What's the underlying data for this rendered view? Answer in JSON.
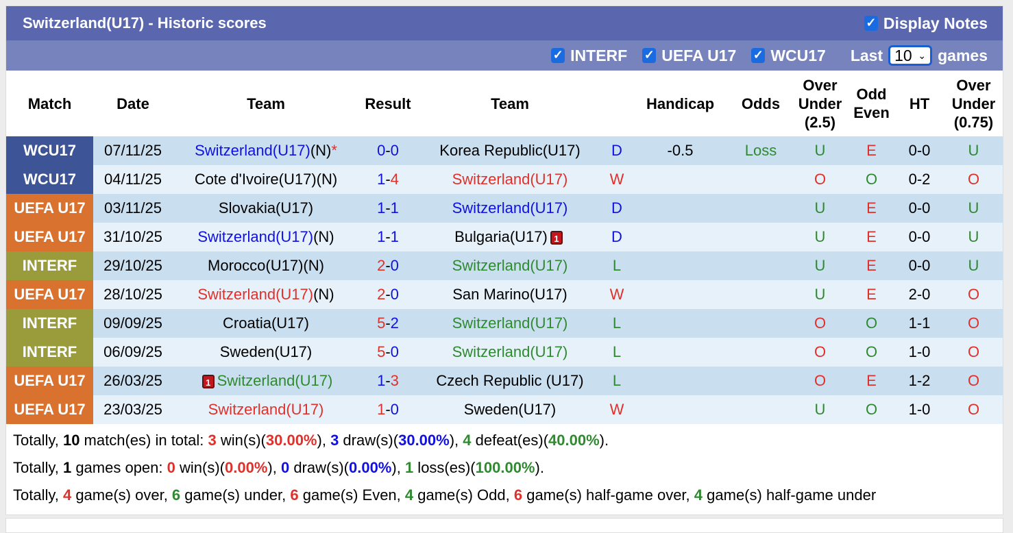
{
  "header": {
    "title": "Switzerland(U17) - Historic scores",
    "display_notes": "Display Notes",
    "display_notes_checked": true
  },
  "filters": {
    "items": [
      {
        "label": "INTERF",
        "checked": true
      },
      {
        "label": "UEFA U17",
        "checked": true
      },
      {
        "label": "WCU17",
        "checked": true
      }
    ],
    "last_label": "Last",
    "last_value": "10",
    "games_label": "games"
  },
  "columns": [
    "Match",
    "Date",
    "Team",
    "Result",
    "Team",
    "",
    "Handicap",
    "Odds",
    "Over Under (2.5)",
    "Odd Even",
    "HT",
    "Over Under (0.75)"
  ],
  "colors": {
    "WCU17": "#3d5597",
    "UEFA U17": "#d9722f",
    "INTERF": "#9a9c3c",
    "red": "#e0302a",
    "blue": "#1010e0",
    "green": "#2e8a2e",
    "black": "#000"
  },
  "rows": [
    {
      "match": "WCU17",
      "date": "07/11/25",
      "home": {
        "name": "Switzerland(U17)",
        "color": "blue",
        "suffix": "(N)",
        "star": "*"
      },
      "hs": "0",
      "hc": "blue",
      "as": "0",
      "ac": "blue",
      "away": {
        "name": "Korea Republic(U17)",
        "color": "black"
      },
      "res": "D",
      "rc": "blue",
      "handicap": "-0.5",
      "odds": "Loss",
      "ou": "U",
      "oe": "E",
      "ht": "0-0",
      "ou2": "U"
    },
    {
      "match": "WCU17",
      "date": "04/11/25",
      "home": {
        "name": "Cote d'Ivoire(U17)",
        "color": "black",
        "suffix": "(N)"
      },
      "hs": "1",
      "hc": "blue",
      "as": "4",
      "ac": "red",
      "away": {
        "name": "Switzerland(U17)",
        "color": "red"
      },
      "res": "W",
      "rc": "red",
      "handicap": "",
      "odds": "",
      "ou": "O",
      "oe": "O",
      "ht": "0-2",
      "ou2": "O"
    },
    {
      "match": "UEFA U17",
      "date": "03/11/25",
      "home": {
        "name": "Slovakia(U17)",
        "color": "black"
      },
      "hs": "1",
      "hc": "blue",
      "as": "1",
      "ac": "blue",
      "away": {
        "name": "Switzerland(U17)",
        "color": "blue"
      },
      "res": "D",
      "rc": "blue",
      "handicap": "",
      "odds": "",
      "ou": "U",
      "oe": "E",
      "ht": "0-0",
      "ou2": "U"
    },
    {
      "match": "UEFA U17",
      "date": "31/10/25",
      "home": {
        "name": "Switzerland(U17)",
        "color": "blue",
        "suffix": "(N)"
      },
      "hs": "1",
      "hc": "blue",
      "as": "1",
      "ac": "blue",
      "away": {
        "name": "Bulgaria(U17)",
        "color": "black",
        "post_card": "1"
      },
      "res": "D",
      "rc": "blue",
      "handicap": "",
      "odds": "",
      "ou": "U",
      "oe": "E",
      "ht": "0-0",
      "ou2": "U"
    },
    {
      "match": "INTERF",
      "date": "29/10/25",
      "home": {
        "name": "Morocco(U17)",
        "color": "black",
        "suffix": "(N)"
      },
      "hs": "2",
      "hc": "red",
      "as": "0",
      "ac": "blue",
      "away": {
        "name": "Switzerland(U17)",
        "color": "green"
      },
      "res": "L",
      "rc": "green",
      "handicap": "",
      "odds": "",
      "ou": "U",
      "oe": "E",
      "ht": "0-0",
      "ou2": "U"
    },
    {
      "match": "UEFA U17",
      "date": "28/10/25",
      "home": {
        "name": "Switzerland(U17)",
        "color": "red",
        "suffix": "(N)"
      },
      "hs": "2",
      "hc": "red",
      "as": "0",
      "ac": "blue",
      "away": {
        "name": "San Marino(U17)",
        "color": "black"
      },
      "res": "W",
      "rc": "red",
      "handicap": "",
      "odds": "",
      "ou": "U",
      "oe": "E",
      "ht": "2-0",
      "ou2": "O"
    },
    {
      "match": "INTERF",
      "date": "09/09/25",
      "home": {
        "name": "Croatia(U17)",
        "color": "black"
      },
      "hs": "5",
      "hc": "red",
      "as": "2",
      "ac": "blue",
      "away": {
        "name": "Switzerland(U17)",
        "color": "green"
      },
      "res": "L",
      "rc": "green",
      "handicap": "",
      "odds": "",
      "ou": "O",
      "oe": "O",
      "ht": "1-1",
      "ou2": "O"
    },
    {
      "match": "INTERF",
      "date": "06/09/25",
      "home": {
        "name": "Sweden(U17)",
        "color": "black"
      },
      "hs": "5",
      "hc": "red",
      "as": "0",
      "ac": "blue",
      "away": {
        "name": "Switzerland(U17)",
        "color": "green"
      },
      "res": "L",
      "rc": "green",
      "handicap": "",
      "odds": "",
      "ou": "O",
      "oe": "O",
      "ht": "1-0",
      "ou2": "O"
    },
    {
      "match": "UEFA U17",
      "date": "26/03/25",
      "home": {
        "name": "Switzerland(U17)",
        "color": "green",
        "pre_card": "1"
      },
      "hs": "1",
      "hc": "blue",
      "as": "3",
      "ac": "red",
      "away": {
        "name": "Czech Republic (U17)",
        "color": "black"
      },
      "res": "L",
      "rc": "green",
      "handicap": "",
      "odds": "",
      "ou": "O",
      "oe": "E",
      "ht": "1-2",
      "ou2": "O"
    },
    {
      "match": "UEFA U17",
      "date": "23/03/25",
      "home": {
        "name": "Switzerland(U17)",
        "color": "red"
      },
      "hs": "1",
      "hc": "red",
      "as": "0",
      "ac": "blue",
      "away": {
        "name": "Sweden(U17)",
        "color": "black"
      },
      "res": "W",
      "rc": "red",
      "handicap": "",
      "odds": "",
      "ou": "U",
      "oe": "O",
      "ht": "1-0",
      "ou2": "O"
    }
  ],
  "summary": [
    [
      [
        "Totally, ",
        "black",
        0
      ],
      [
        "10",
        "black",
        1
      ],
      [
        " match(es) in total: ",
        "black",
        0
      ],
      [
        "3",
        "red",
        1
      ],
      [
        " win(s)(",
        "black",
        0
      ],
      [
        "30.00%",
        "red",
        1
      ],
      [
        "), ",
        "black",
        0
      ],
      [
        "3",
        "blue",
        1
      ],
      [
        " draw(s)(",
        "black",
        0
      ],
      [
        "30.00%",
        "blue",
        1
      ],
      [
        "), ",
        "black",
        0
      ],
      [
        "4",
        "green",
        1
      ],
      [
        " defeat(es)(",
        "black",
        0
      ],
      [
        "40.00%",
        "green",
        1
      ],
      [
        ").",
        "black",
        0
      ]
    ],
    [
      [
        "Totally, ",
        "black",
        0
      ],
      [
        "1",
        "black",
        1
      ],
      [
        " games open: ",
        "black",
        0
      ],
      [
        "0",
        "red",
        1
      ],
      [
        " win(s)(",
        "black",
        0
      ],
      [
        "0.00%",
        "red",
        1
      ],
      [
        "), ",
        "black",
        0
      ],
      [
        "0",
        "blue",
        1
      ],
      [
        " draw(s)(",
        "black",
        0
      ],
      [
        "0.00%",
        "blue",
        1
      ],
      [
        "), ",
        "black",
        0
      ],
      [
        "1",
        "green",
        1
      ],
      [
        " loss(es)(",
        "black",
        0
      ],
      [
        "100.00%",
        "green",
        1
      ],
      [
        ").",
        "black",
        0
      ]
    ],
    [
      [
        "Totally, ",
        "black",
        0
      ],
      [
        "4",
        "red",
        1
      ],
      [
        " game(s) over, ",
        "black",
        0
      ],
      [
        "6",
        "green",
        1
      ],
      [
        " game(s) under, ",
        "black",
        0
      ],
      [
        "6",
        "red",
        1
      ],
      [
        " game(s) Even, ",
        "black",
        0
      ],
      [
        "4",
        "green",
        1
      ],
      [
        " game(s) Odd, ",
        "black",
        0
      ],
      [
        "6",
        "red",
        1
      ],
      [
        " game(s) half-game over, ",
        "black",
        0
      ],
      [
        "4",
        "green",
        1
      ],
      [
        " game(s) half-game under",
        "black",
        0
      ]
    ]
  ]
}
